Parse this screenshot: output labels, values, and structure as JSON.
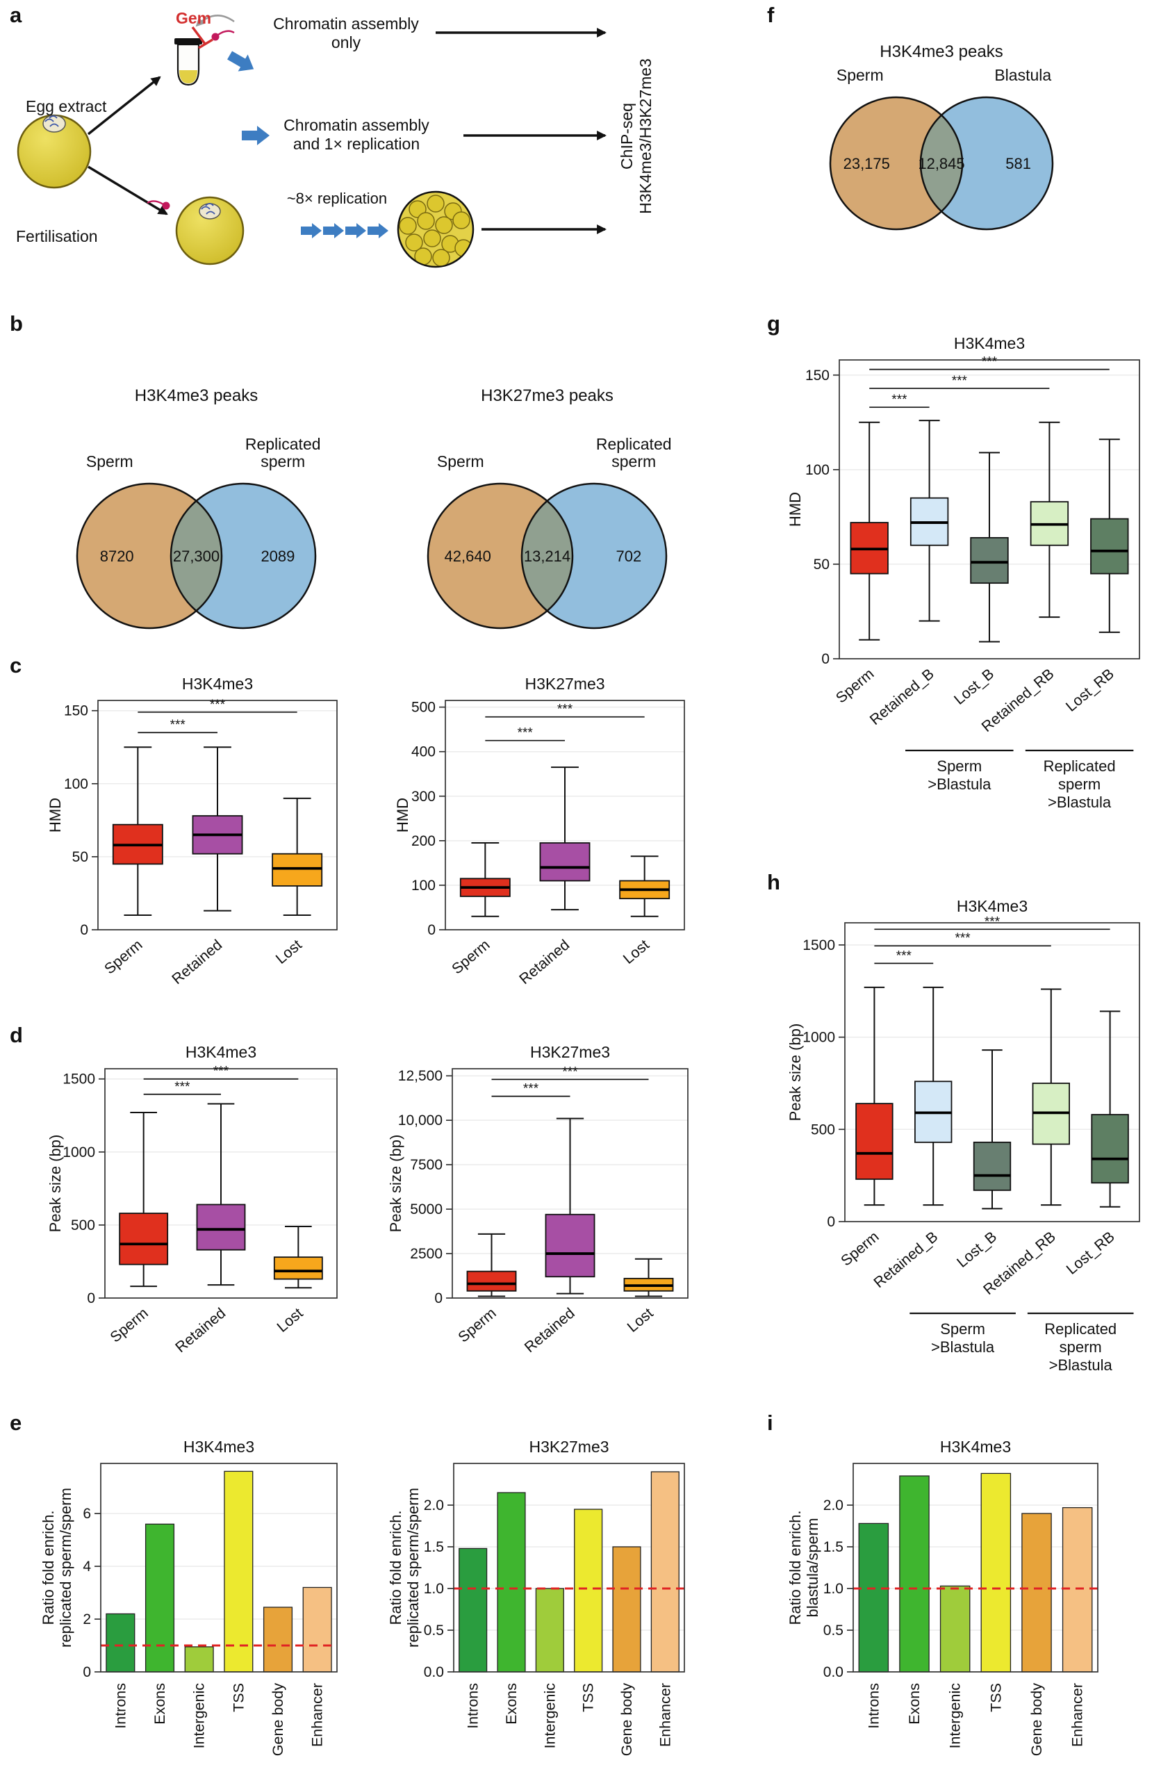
{
  "figure": {
    "panels": {
      "a": "a",
      "b": "b",
      "c": "c",
      "d": "d",
      "e": "e",
      "f": "f",
      "g": "g",
      "h": "h",
      "i": "i"
    }
  },
  "panel_a": {
    "gem": "Gem",
    "egg_extract": "Egg extract",
    "fertilisation": "Fertilisation",
    "chromatin_only": "Chromatin assembly\nonly",
    "chromatin_1x": "Chromatin assembly\nand 1× replication",
    "replication": "~8× replication",
    "chipseq": "ChIP-seq\nH3K4me3/H3K27me3"
  },
  "palette": {
    "sperm_red": "#e0301e",
    "retained_purple": "#a74fa4",
    "lost_orange": "#f7a71c",
    "retained_b_blue": "#d4e8f7",
    "lost_b_slate": "#687f71",
    "retained_rb_green": "#d7efc4",
    "lost_rb_green": "#5e7f63",
    "venn_left_tan": "#d5a873",
    "venn_right_blue": "#92bedd",
    "venn_overlap": "#90a090",
    "refline_red": "#e02424",
    "arrow_blue": "#3d7dc2",
    "egg_yellow": "#d9c93f"
  },
  "chart_data": [
    {
      "id": "venn_b_h3k4me3",
      "type": "venn",
      "title": "H3K4me3 peaks",
      "left_label": "Sperm",
      "right_label": "Replicated\nsperm",
      "left_value": "8720",
      "overlap_value": "27,300",
      "right_value": "2089",
      "left_color": "#d5a873",
      "right_color": "#92bedd",
      "overlap_color": "#90a090"
    },
    {
      "id": "venn_b_h3k27me3",
      "type": "venn",
      "title": "H3K27me3 peaks",
      "left_label": "Sperm",
      "right_label": "Replicated\nsperm",
      "left_value": "42,640",
      "overlap_value": "13,214",
      "right_value": "702",
      "left_color": "#d5a873",
      "right_color": "#92bedd",
      "overlap_color": "#90a090"
    },
    {
      "id": "venn_f_h3k4me3",
      "type": "venn",
      "title": "H3K4me3 peaks",
      "left_label": "Sperm",
      "right_label": "Blastula",
      "left_value": "23,175",
      "overlap_value": "12,845",
      "right_value": "581",
      "left_color": "#d5a873",
      "right_color": "#92bedd",
      "overlap_color": "#90a090"
    },
    {
      "id": "box_c_h3k4me3",
      "type": "boxplot",
      "title": "H3K4me3",
      "ylabel": "HMD",
      "ylim": [
        0,
        157
      ],
      "yticks": [
        0,
        50,
        100,
        150
      ],
      "categories": [
        "Sperm",
        "Retained",
        "Lost"
      ],
      "colors": [
        "#e0301e",
        "#a74fa4",
        "#f7a71c"
      ],
      "boxes": [
        {
          "lo": 10,
          "q1": 45,
          "med": 58,
          "q3": 72,
          "hi": 125
        },
        {
          "lo": 13,
          "q1": 52,
          "med": 65,
          "q3": 78,
          "hi": 125
        },
        {
          "lo": 10,
          "q1": 30,
          "med": 42,
          "q3": 52,
          "hi": 90
        }
      ],
      "sig": [
        {
          "a": 0,
          "b": 1,
          "y": 135,
          "label": "***"
        },
        {
          "a": 0,
          "b": 2,
          "y": 149,
          "label": "***"
        }
      ]
    },
    {
      "id": "box_c_h3k27me3",
      "type": "boxplot",
      "title": "H3K27me3",
      "ylabel": "HMD",
      "ylim": [
        0,
        515
      ],
      "yticks": [
        0,
        100,
        200,
        300,
        400,
        500
      ],
      "categories": [
        "Sperm",
        "Retained",
        "Lost"
      ],
      "colors": [
        "#e0301e",
        "#a74fa4",
        "#f7a71c"
      ],
      "boxes": [
        {
          "lo": 30,
          "q1": 75,
          "med": 95,
          "q3": 115,
          "hi": 195
        },
        {
          "lo": 45,
          "q1": 110,
          "med": 140,
          "q3": 195,
          "hi": 365
        },
        {
          "lo": 30,
          "q1": 70,
          "med": 90,
          "q3": 110,
          "hi": 165
        }
      ],
      "sig": [
        {
          "a": 0,
          "b": 1,
          "y": 425,
          "label": "***"
        },
        {
          "a": 0,
          "b": 2,
          "y": 478,
          "label": "***"
        }
      ]
    },
    {
      "id": "box_d_h3k4me3",
      "type": "boxplot",
      "title": "H3K4me3",
      "ylabel": "Peak size (bp)",
      "ylim": [
        0,
        1570
      ],
      "yticks": [
        0,
        500,
        1000,
        1500
      ],
      "categories": [
        "Sperm",
        "Retained",
        "Lost"
      ],
      "colors": [
        "#e0301e",
        "#a74fa4",
        "#f7a71c"
      ],
      "boxes": [
        {
          "lo": 80,
          "q1": 230,
          "med": 370,
          "q3": 580,
          "hi": 1270
        },
        {
          "lo": 90,
          "q1": 330,
          "med": 470,
          "q3": 640,
          "hi": 1330
        },
        {
          "lo": 70,
          "q1": 130,
          "med": 185,
          "q3": 280,
          "hi": 490
        }
      ],
      "sig": [
        {
          "a": 0,
          "b": 1,
          "y": 1395,
          "label": "***"
        },
        {
          "a": 0,
          "b": 2,
          "y": 1500,
          "label": "***"
        }
      ]
    },
    {
      "id": "box_d_h3k27me3",
      "type": "boxplot",
      "title": "H3K27me3",
      "ylabel": "Peak size (bp)",
      "ylim": [
        0,
        12900
      ],
      "yticks": [
        0,
        2500,
        5000,
        7500,
        10000,
        12500
      ],
      "ytick_labels": [
        "0",
        "2500",
        "5000",
        "7500",
        "10,000",
        "12,500"
      ],
      "categories": [
        "Sperm",
        "Retained",
        "Lost"
      ],
      "colors": [
        "#e0301e",
        "#a74fa4",
        "#f7a71c"
      ],
      "boxes": [
        {
          "lo": 100,
          "q1": 400,
          "med": 800,
          "q3": 1500,
          "hi": 3600
        },
        {
          "lo": 250,
          "q1": 1200,
          "med": 2500,
          "q3": 4700,
          "hi": 10100
        },
        {
          "lo": 100,
          "q1": 400,
          "med": 700,
          "q3": 1100,
          "hi": 2200
        }
      ],
      "sig": [
        {
          "a": 0,
          "b": 1,
          "y": 11350,
          "label": "***"
        },
        {
          "a": 0,
          "b": 2,
          "y": 12300,
          "label": "***"
        }
      ]
    },
    {
      "id": "bar_e_h3k4me3",
      "type": "bar",
      "title": "H3K4me3",
      "ylabel": "Ratio fold enrich.\nreplicated sperm/sperm",
      "ylim": [
        0,
        7.9
      ],
      "yticks": [
        0,
        2,
        4,
        6
      ],
      "categories": [
        "Introns",
        "Exons",
        "Intergenic",
        "TSS",
        "Gene body",
        "Enhancer"
      ],
      "values": [
        2.2,
        5.6,
        0.95,
        7.6,
        2.45,
        3.2
      ],
      "colors": [
        "#2a9d3f",
        "#3fb52f",
        "#9fcc3b",
        "#ece92f",
        "#e7a33a",
        "#f5c083"
      ],
      "refline": 1.0,
      "refline_color": "#e02424"
    },
    {
      "id": "bar_e_h3k27me3",
      "type": "bar",
      "title": "H3K27me3",
      "ylabel": "Ratio fold enrich.\nreplicated sperm/sperm",
      "ylim": [
        0,
        2.5
      ],
      "yticks": [
        0,
        0.5,
        1,
        1.5,
        2
      ],
      "ytick_labels": [
        "0.0",
        "0.5",
        "1.0",
        "1.5",
        "2.0"
      ],
      "categories": [
        "Introns",
        "Exons",
        "Intergenic",
        "TSS",
        "Gene body",
        "Enhancer"
      ],
      "values": [
        1.48,
        2.15,
        1.0,
        1.95,
        1.5,
        2.4
      ],
      "colors": [
        "#2a9d3f",
        "#3fb52f",
        "#9fcc3b",
        "#ece92f",
        "#e7a33a",
        "#f5c083"
      ],
      "refline": 1.0,
      "refline_color": "#e02424"
    },
    {
      "id": "box_g_h3k4me3",
      "type": "boxplot",
      "title": "H3K4me3",
      "ylabel": "HMD",
      "ylim": [
        0,
        158
      ],
      "yticks": [
        0,
        50,
        100,
        150
      ],
      "categories": [
        "Sperm",
        "Retained_B",
        "Lost_B",
        "Retained_RB",
        "Lost_RB"
      ],
      "colors": [
        "#e0301e",
        "#d4e8f7",
        "#687f71",
        "#d7efc4",
        "#5e7f63"
      ],
      "boxes": [
        {
          "lo": 10,
          "q1": 45,
          "med": 58,
          "q3": 72,
          "hi": 125
        },
        {
          "lo": 20,
          "q1": 60,
          "med": 72,
          "q3": 85,
          "hi": 126
        },
        {
          "lo": 9,
          "q1": 40,
          "med": 51,
          "q3": 64,
          "hi": 109
        },
        {
          "lo": 22,
          "q1": 60,
          "med": 71,
          "q3": 83,
          "hi": 125
        },
        {
          "lo": 14,
          "q1": 45,
          "med": 57,
          "q3": 74,
          "hi": 116
        }
      ],
      "sig": [
        {
          "a": 0,
          "b": 1,
          "y": 133,
          "label": "***"
        },
        {
          "a": 0,
          "b": 3,
          "y": 143,
          "label": "***"
        },
        {
          "a": 0,
          "b": 4,
          "y": 153,
          "label": "***"
        }
      ],
      "groups": [
        {
          "from": 1,
          "to": 2,
          "label": "Sperm\n>Blastula"
        },
        {
          "from": 3,
          "to": 4,
          "label": "Replicated\nsperm\n>Blastula"
        }
      ]
    },
    {
      "id": "box_h_h3k4me3",
      "type": "boxplot",
      "title": "H3K4me3",
      "ylabel": "Peak size (bp)",
      "ylim": [
        0,
        1620
      ],
      "yticks": [
        0,
        500,
        1000,
        1500
      ],
      "categories": [
        "Sperm",
        "Retained_B",
        "Lost_B",
        "Retained_RB",
        "Lost_RB"
      ],
      "colors": [
        "#e0301e",
        "#d4e8f7",
        "#687f71",
        "#d7efc4",
        "#5e7f63"
      ],
      "boxes": [
        {
          "lo": 90,
          "q1": 230,
          "med": 370,
          "q3": 640,
          "hi": 1270
        },
        {
          "lo": 90,
          "q1": 430,
          "med": 590,
          "q3": 760,
          "hi": 1270
        },
        {
          "lo": 70,
          "q1": 170,
          "med": 250,
          "q3": 430,
          "hi": 930
        },
        {
          "lo": 90,
          "q1": 420,
          "med": 590,
          "q3": 750,
          "hi": 1260
        },
        {
          "lo": 80,
          "q1": 210,
          "med": 340,
          "q3": 580,
          "hi": 1140
        }
      ],
      "sig": [
        {
          "a": 0,
          "b": 1,
          "y": 1400,
          "label": "***"
        },
        {
          "a": 0,
          "b": 3,
          "y": 1495,
          "label": "***"
        },
        {
          "a": 0,
          "b": 4,
          "y": 1585,
          "label": "***"
        }
      ],
      "groups": [
        {
          "from": 1,
          "to": 2,
          "label": "Sperm\n>Blastula"
        },
        {
          "from": 3,
          "to": 4,
          "label": "Replicated\nsperm\n>Blastula"
        }
      ]
    },
    {
      "id": "bar_i_h3k4me3",
      "type": "bar",
      "title": "H3K4me3",
      "ylabel": "Ratio fold enrich.\nblastula/sperm",
      "ylim": [
        0,
        2.5
      ],
      "yticks": [
        0,
        0.5,
        1,
        1.5,
        2
      ],
      "ytick_labels": [
        "0.0",
        "0.5",
        "1.0",
        "1.5",
        "2.0"
      ],
      "categories": [
        "Introns",
        "Exons",
        "Intergenic",
        "TSS",
        "Gene body",
        "Enhancer"
      ],
      "values": [
        1.78,
        2.35,
        1.03,
        2.38,
        1.9,
        1.97
      ],
      "colors": [
        "#2a9d3f",
        "#3fb52f",
        "#9fcc3b",
        "#ece92f",
        "#e7a33a",
        "#f5c083"
      ],
      "refline": 1.0,
      "refline_color": "#e02424"
    }
  ]
}
